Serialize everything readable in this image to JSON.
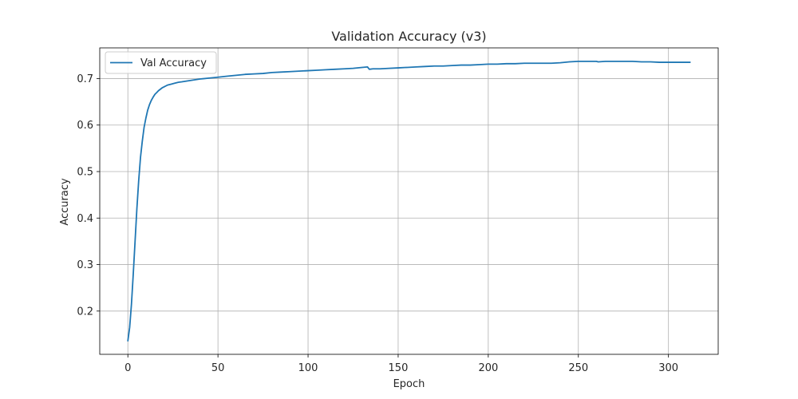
{
  "chart_data": {
    "type": "line",
    "title": "Validation Accuracy (v3)",
    "xlabel": "Epoch",
    "ylabel": "Accuracy",
    "xlim": [
      -15.6,
      327.6
    ],
    "ylim": [
      0.107,
      0.766
    ],
    "grid": true,
    "legend": {
      "position": "top-left",
      "entries": [
        "Val Accuracy"
      ]
    },
    "xticks": [
      0,
      50,
      100,
      150,
      200,
      250,
      300
    ],
    "xtick_labels": [
      "0",
      "50",
      "100",
      "150",
      "200",
      "250",
      "300"
    ],
    "yticks": [
      0.2,
      0.3,
      0.4,
      0.5,
      0.6,
      0.7
    ],
    "ytick_labels": [
      "0.2",
      "0.3",
      "0.4",
      "0.5",
      "0.6",
      "0.7"
    ],
    "series": [
      {
        "name": "Val Accuracy",
        "color": "#1f77b4",
        "x": [
          0,
          1,
          2,
          3,
          4,
          5,
          6,
          7,
          8,
          9,
          10,
          11,
          12,
          13,
          14,
          15,
          16,
          17,
          18,
          19,
          20,
          22,
          24,
          26,
          28,
          30,
          35,
          40,
          45,
          50,
          55,
          60,
          65,
          70,
          75,
          80,
          85,
          90,
          95,
          100,
          105,
          110,
          115,
          120,
          125,
          130,
          133,
          134,
          136,
          140,
          145,
          150,
          155,
          160,
          165,
          170,
          175,
          180,
          185,
          190,
          195,
          200,
          205,
          210,
          215,
          220,
          225,
          230,
          235,
          240,
          245,
          250,
          255,
          260,
          261,
          265,
          270,
          275,
          280,
          285,
          290,
          295,
          300,
          305,
          310,
          312
        ],
        "y": [
          0.136,
          0.165,
          0.215,
          0.28,
          0.35,
          0.42,
          0.48,
          0.53,
          0.565,
          0.595,
          0.615,
          0.632,
          0.644,
          0.653,
          0.66,
          0.666,
          0.67,
          0.674,
          0.677,
          0.68,
          0.682,
          0.686,
          0.688,
          0.69,
          0.692,
          0.693,
          0.696,
          0.699,
          0.701,
          0.703,
          0.705,
          0.707,
          0.709,
          0.71,
          0.711,
          0.713,
          0.714,
          0.715,
          0.716,
          0.717,
          0.718,
          0.719,
          0.72,
          0.721,
          0.722,
          0.724,
          0.725,
          0.72,
          0.721,
          0.721,
          0.722,
          0.723,
          0.724,
          0.725,
          0.726,
          0.727,
          0.727,
          0.728,
          0.729,
          0.729,
          0.73,
          0.731,
          0.731,
          0.732,
          0.732,
          0.733,
          0.733,
          0.733,
          0.733,
          0.734,
          0.736,
          0.737,
          0.737,
          0.737,
          0.736,
          0.737,
          0.737,
          0.737,
          0.737,
          0.736,
          0.736,
          0.735,
          0.735,
          0.735,
          0.735,
          0.735
        ]
      }
    ]
  }
}
